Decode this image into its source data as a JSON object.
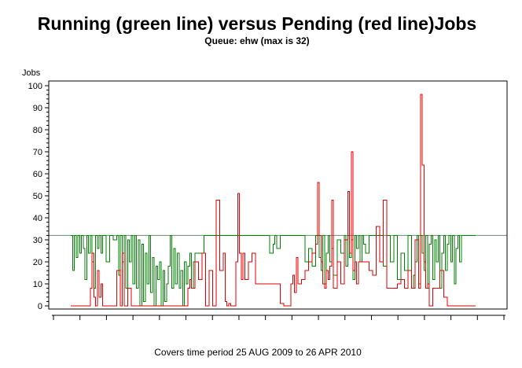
{
  "chart_data": {
    "type": "line",
    "title": "Running (green line) versus Pending (red line)Jobs",
    "subtitle": "Queue: ehw (max is 32)",
    "ylabel": "Jobs",
    "xlabel": "",
    "footnote": "Covers time period 25 AUG 2009 to 26 APR 2010",
    "ylim": [
      0,
      100
    ],
    "yticks": [
      0,
      10,
      20,
      30,
      40,
      50,
      60,
      70,
      80,
      90,
      100
    ],
    "xlim": [
      0,
      240
    ],
    "reference_line": {
      "value": 32,
      "label": "max is 32"
    },
    "x_unit": "days since 25 AUG 2009",
    "colors": {
      "running": "#008000",
      "pending": "#e00000",
      "reference": "#6d8a6d",
      "axis": "#000000"
    },
    "series": [
      {
        "name": "Running",
        "color": "#008000",
        "x": [
          0,
          1,
          2,
          3,
          4,
          5,
          6,
          7,
          8,
          9,
          10,
          11,
          12,
          13,
          14,
          15,
          16,
          17,
          18,
          20,
          22,
          24,
          26,
          27,
          28,
          29,
          30,
          31,
          32,
          33,
          34,
          35,
          36,
          37,
          38,
          39,
          40,
          41,
          42,
          43,
          44,
          45,
          46,
          47,
          48,
          49,
          50,
          51,
          52,
          53,
          54,
          55,
          56,
          57,
          58,
          59,
          60,
          61,
          62,
          63,
          64,
          65,
          66,
          67,
          68,
          69,
          70,
          75,
          80,
          85,
          90,
          95,
          100,
          105,
          110,
          112,
          114,
          115,
          116,
          118,
          120,
          125,
          130,
          132,
          134,
          136,
          138,
          140,
          141,
          142,
          143,
          144,
          145,
          146,
          147,
          148,
          150,
          152,
          154,
          155,
          156,
          157,
          158,
          159,
          160,
          161,
          162,
          163,
          164,
          165,
          166,
          168,
          170,
          172,
          174,
          176,
          178,
          180,
          182,
          184,
          186,
          188,
          190,
          192,
          193,
          194,
          195,
          196,
          197,
          198,
          199,
          200,
          201,
          202,
          203,
          204,
          205,
          206,
          207,
          208,
          209,
          210,
          211,
          212,
          213,
          214,
          215,
          216,
          217,
          218,
          219,
          220,
          222,
          224,
          226,
          228
        ],
        "values": [
          32,
          16,
          32,
          22,
          32,
          24,
          32,
          26,
          12,
          32,
          24,
          32,
          20,
          8,
          32,
          26,
          32,
          24,
          32,
          20,
          32,
          30,
          32,
          14,
          32,
          20,
          32,
          8,
          30,
          20,
          32,
          10,
          32,
          8,
          30,
          0,
          28,
          2,
          24,
          10,
          32,
          6,
          22,
          0,
          18,
          12,
          20,
          0,
          16,
          2,
          10,
          18,
          32,
          8,
          26,
          10,
          24,
          8,
          16,
          0,
          20,
          10,
          18,
          24,
          8,
          20,
          24,
          32,
          32,
          32,
          32,
          32,
          32,
          32,
          32,
          24,
          28,
          32,
          26,
          32,
          32,
          32,
          32,
          20,
          26,
          18,
          32,
          22,
          16,
          32,
          10,
          24,
          32,
          20,
          26,
          14,
          30,
          24,
          32,
          18,
          32,
          22,
          30,
          12,
          32,
          26,
          32,
          20,
          32,
          28,
          24,
          32,
          32,
          32,
          32,
          18,
          32,
          20,
          32,
          12,
          24,
          16,
          32,
          8,
          14,
          20,
          32,
          10,
          32,
          24,
          16,
          32,
          8,
          28,
          32,
          12,
          30,
          20,
          32,
          8,
          24,
          32,
          16,
          28,
          32,
          20,
          32,
          10,
          26,
          32,
          20,
          32,
          32,
          32,
          32,
          32
        ]
      },
      {
        "name": "Pending",
        "color": "#e00000",
        "x": [
          0,
          10,
          11,
          12,
          13,
          14,
          15,
          16,
          17,
          18,
          20,
          24,
          26,
          28,
          29,
          30,
          32,
          34,
          36,
          40,
          45,
          50,
          55,
          60,
          64,
          66,
          67,
          68,
          70,
          72,
          74,
          76,
          78,
          80,
          82,
          84,
          86,
          87,
          88,
          89,
          90,
          92,
          93,
          94,
          95,
          96,
          97,
          98,
          100,
          102,
          104,
          106,
          108,
          110,
          112,
          114,
          116,
          118,
          120,
          122,
          124,
          125,
          126,
          127,
          128,
          130,
          132,
          134,
          136,
          138,
          139,
          140,
          141,
          142,
          143,
          144,
          145,
          146,
          147,
          148,
          150,
          152,
          154,
          156,
          157,
          158,
          159,
          160,
          161,
          162,
          164,
          166,
          168,
          170,
          172,
          174,
          176,
          178,
          180,
          182,
          184,
          186,
          188,
          190,
          192,
          194,
          196,
          197,
          198,
          199,
          200,
          201,
          202,
          204,
          206,
          208,
          210,
          212,
          214,
          216,
          218,
          220,
          224,
          228
        ],
        "values": [
          0,
          0,
          8,
          24,
          4,
          0,
          16,
          4,
          10,
          0,
          0,
          0,
          16,
          0,
          24,
          0,
          8,
          0,
          0,
          0,
          0,
          0,
          0,
          0,
          0,
          8,
          12,
          8,
          20,
          12,
          24,
          0,
          16,
          0,
          48,
          16,
          24,
          2,
          0,
          1,
          0,
          0,
          20,
          51,
          24,
          12,
          24,
          12,
          20,
          24,
          10,
          10,
          10,
          10,
          10,
          10,
          10,
          1,
          0,
          0,
          10,
          14,
          6,
          22,
          10,
          12,
          16,
          20,
          24,
          28,
          56,
          32,
          20,
          10,
          8,
          16,
          12,
          18,
          48,
          8,
          20,
          10,
          30,
          52,
          24,
          70,
          16,
          20,
          10,
          20,
          20,
          20,
          16,
          14,
          36,
          20,
          48,
          8,
          8,
          8,
          10,
          12,
          8,
          16,
          8,
          30,
          8,
          96,
          64,
          20,
          8,
          10,
          0,
          8,
          8,
          16,
          4,
          0,
          0,
          0,
          0,
          0,
          0,
          0
        ]
      }
    ]
  }
}
